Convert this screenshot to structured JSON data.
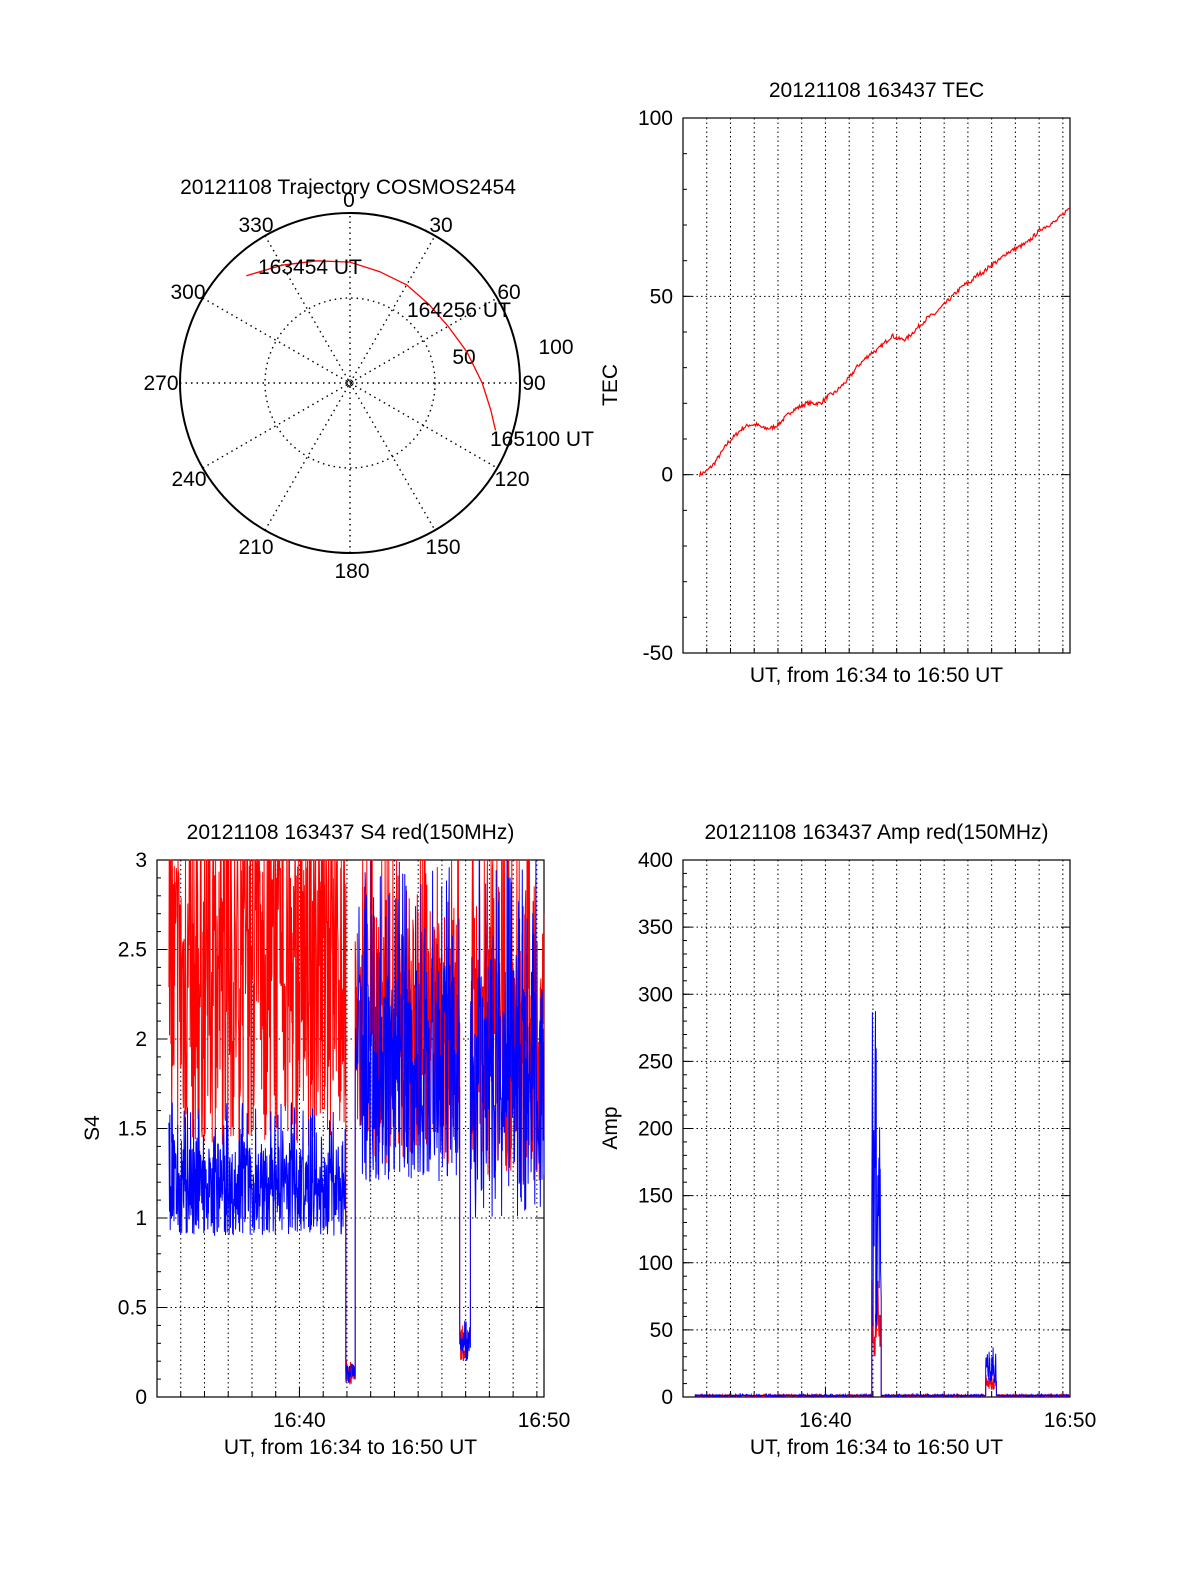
{
  "colors": {
    "red": "#ff0000",
    "blue": "#0000ff",
    "axis": "#000000",
    "grid": "#000000",
    "background": "#ffffff"
  },
  "chart_data": [
    {
      "id": "trajectory",
      "type": "polar",
      "title": "20121108 Trajectory COSMOS2454",
      "azimuth_labels": [
        "0",
        "30",
        "60",
        "90",
        "120",
        "150",
        "180",
        "210",
        "240",
        "270",
        "300",
        "330"
      ],
      "radial_labels": [
        "50",
        "100"
      ],
      "grid": true,
      "track": {
        "color": "red",
        "points": [
          {
            "az": 316,
            "el": 11
          },
          {
            "az": 330,
            "el": 18
          },
          {
            "az": 345,
            "el": 23
          },
          {
            "az": 0,
            "el": 26
          },
          {
            "az": 15,
            "el": 29
          },
          {
            "az": 30,
            "el": 30
          },
          {
            "az": 45,
            "el": 31
          },
          {
            "az": 60,
            "el": 30
          },
          {
            "az": 75,
            "el": 26
          },
          {
            "az": 90,
            "el": 20
          },
          {
            "az": 101,
            "el": 14
          },
          {
            "az": 108,
            "el": 9
          }
        ]
      },
      "time_labels": [
        "163454 UT",
        "164256 UT",
        "165100 UT"
      ]
    },
    {
      "id": "tec",
      "type": "line",
      "title": "20121108 163437 TEC",
      "xlabel": "UT, from 16:34 to 16:50 UT",
      "ylabel": "TEC",
      "ylim": [
        -50,
        100
      ],
      "yticks": [
        "100",
        "50",
        "0",
        "-50"
      ],
      "x_range_min": [
        34.0,
        50.3
      ],
      "grid": true,
      "series": [
        {
          "color": "red",
          "x": [
            34.7,
            35.0,
            35.3,
            35.6,
            35.9,
            36.2,
            36.5,
            36.8,
            37.1,
            37.4,
            37.7,
            38.0,
            38.3,
            38.6,
            38.9,
            39.2,
            39.5,
            39.8,
            40.1,
            40.4,
            40.7,
            41.0,
            41.3,
            41.6,
            41.9,
            42.2,
            42.5,
            42.8,
            43.1,
            43.4,
            43.7,
            44.0,
            44.3,
            44.6,
            44.9,
            45.2,
            45.5,
            45.8,
            46.1,
            46.4,
            46.7,
            47.0,
            47.3,
            47.6,
            47.9,
            48.2,
            48.5,
            48.8,
            49.1,
            49.4,
            49.7,
            50.0,
            50.3
          ],
          "values": [
            0,
            1,
            3,
            6,
            9,
            11,
            13,
            14,
            14,
            13,
            13,
            14,
            16,
            18,
            19,
            20,
            20,
            20,
            22,
            23,
            25,
            27,
            30,
            32,
            34,
            35,
            37,
            39,
            38,
            38,
            40,
            42,
            44,
            45,
            47,
            49,
            51,
            53,
            54,
            56,
            57,
            59,
            60,
            62,
            63,
            64,
            65,
            67,
            69,
            70,
            71,
            73,
            75
          ]
        }
      ]
    },
    {
      "id": "s4",
      "type": "line",
      "title": "20121108 163437 S4 red(150MHz)",
      "xlabel": "UT, from 16:34 to 16:50 UT",
      "ylabel": "S4",
      "ylim": [
        0,
        3
      ],
      "yticks": [
        "3",
        "2.5",
        "2",
        "1.5",
        "1",
        "0.5",
        "0"
      ],
      "xticks": [
        {
          "min": 40,
          "label": "16:40"
        },
        {
          "min": 50.3,
          "label": "16:50"
        }
      ],
      "x_range_min": [
        34.0,
        50.3
      ],
      "grid": true,
      "segments": [
        {
          "from": 34.5,
          "to": 41.95,
          "red_base": 2.3,
          "red_amp": 0.9,
          "blue_base": 1.15,
          "blue_amp": 0.25
        },
        {
          "from": 41.95,
          "to": 42.35,
          "red_base": 0.12,
          "red_amp": 0.05,
          "blue_base": 0.13,
          "blue_amp": 0.05
        },
        {
          "from": 42.35,
          "to": 46.75,
          "red_base": 2.0,
          "red_amp": 0.7,
          "blue_base": 1.8,
          "blue_amp": 0.6
        },
        {
          "from": 46.75,
          "to": 47.2,
          "red_base": 0.3,
          "red_amp": 0.1,
          "blue_base": 0.28,
          "blue_amp": 0.08
        },
        {
          "from": 47.2,
          "to": 50.3,
          "red_base": 2.0,
          "red_amp": 0.8,
          "blue_base": 1.7,
          "blue_amp": 0.7
        }
      ],
      "series": [
        {
          "color": "red"
        },
        {
          "color": "blue"
        }
      ]
    },
    {
      "id": "amp",
      "type": "line",
      "title": "20121108 163437 Amp red(150MHz)",
      "xlabel": "UT, from 16:34 to 16:50 UT",
      "ylabel": "Amp",
      "ylim": [
        0,
        400
      ],
      "yticks": [
        "400",
        "350",
        "300",
        "250",
        "200",
        "150",
        "100",
        "50",
        "0"
      ],
      "xticks": [
        {
          "min": 40,
          "label": "16:40"
        },
        {
          "min": 50.3,
          "label": "16:50"
        }
      ],
      "x_range_min": [
        34.0,
        50.3
      ],
      "grid": true,
      "segments": [
        {
          "from": 34.5,
          "to": 41.95,
          "red_base": 1,
          "red_amp": 0.5,
          "blue_base": 1,
          "blue_amp": 0.5
        },
        {
          "from": 41.95,
          "to": 42.35,
          "red_base": 50,
          "red_amp": 20,
          "blue_base": 130,
          "blue_amp": 80
        },
        {
          "from": 42.35,
          "to": 46.75,
          "red_base": 1,
          "red_amp": 0.5,
          "blue_base": 1,
          "blue_amp": 0.5
        },
        {
          "from": 46.75,
          "to": 47.2,
          "red_base": 10,
          "red_amp": 5,
          "blue_base": 22,
          "blue_amp": 12
        },
        {
          "from": 47.2,
          "to": 50.3,
          "red_base": 1,
          "red_amp": 0.5,
          "blue_base": 1,
          "blue_amp": 0.5
        }
      ],
      "series": [
        {
          "color": "red"
        },
        {
          "color": "blue"
        }
      ]
    }
  ]
}
